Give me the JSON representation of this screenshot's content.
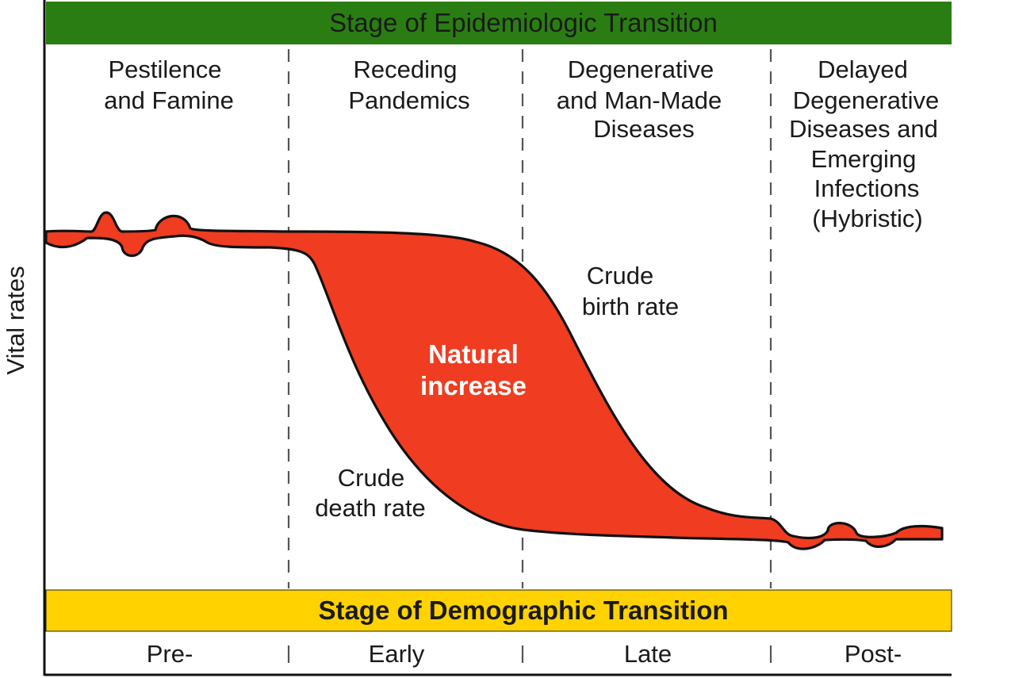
{
  "colors": {
    "epi_banner": "#2a7d12",
    "demo_banner": "#ffd200",
    "fill": "#f03c20",
    "outline": "#111111",
    "divider": "#555555",
    "natural_increase_text": "#ffffff"
  },
  "epidemiologic_banner": {
    "title": "Stage of Epidemiologic Transition"
  },
  "epidemiologic_stages": [
    {
      "lines": [
        "Pestilence",
        "and Famine"
      ]
    },
    {
      "lines": [
        "Receding",
        "Pandemics"
      ]
    },
    {
      "lines": [
        "Degenerative",
        "and Man-Made",
        "Diseases"
      ]
    },
    {
      "lines": [
        "Delayed",
        "Degenerative",
        "Diseases and",
        "Emerging",
        "Infections",
        "(Hybristic)"
      ]
    }
  ],
  "axis": {
    "ylabel": "Vital rates"
  },
  "labels": {
    "birth_rate": [
      "Crude",
      "birth rate"
    ],
    "death_rate": [
      "Crude",
      "death rate"
    ],
    "natural_increase": [
      "Natural",
      "increase"
    ]
  },
  "demographic_banner": {
    "title": "Stage of Demographic Transition"
  },
  "demographic_stages": [
    "Pre-",
    "Early",
    "Late",
    "Post-"
  ]
}
